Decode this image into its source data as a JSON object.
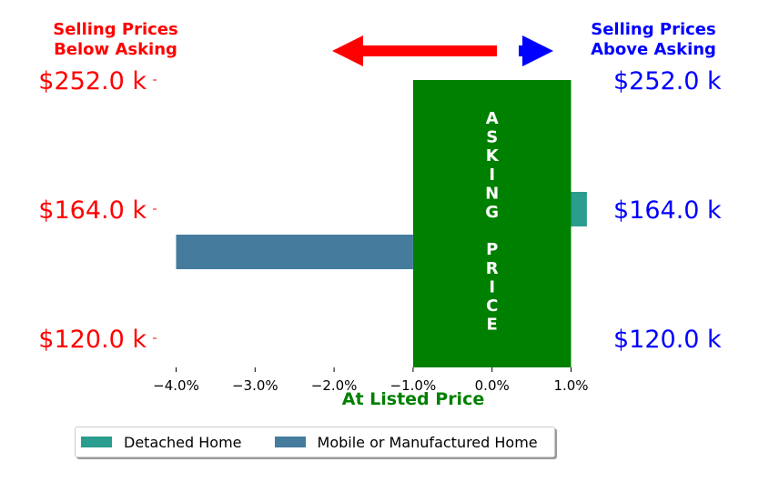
{
  "chart_data": {
    "type": "bar",
    "orientation": "horizontal",
    "categories": [
      "$120.0 k",
      "$164.0 k",
      "$252.0 k"
    ],
    "series": [
      {
        "name": "Detached Home",
        "color": "#2a9d8f",
        "points": [
          {
            "category": "$164.0 k",
            "value": 1.2
          }
        ]
      },
      {
        "name": "Mobile or Manufactured Home",
        "color": "#457b9d",
        "points": [
          {
            "category": "$164.0 k",
            "value": -4.0
          }
        ]
      }
    ],
    "xticks": [
      -4.0,
      -3.0,
      -2.0,
      -1.0,
      0.0,
      1.0
    ],
    "xtick_labels": [
      "−4.0%",
      "−3.0%",
      "−2.0%",
      "−1.0%",
      "0.0%",
      "1.0%"
    ],
    "xlim": [
      -4.7,
      1.1
    ],
    "asking_band": {
      "from": -1.0,
      "to": 1.0,
      "color": "#008000",
      "text": "ASKING PRICE"
    },
    "xlabel": "At Listed Price",
    "xlabel_color": "#008000",
    "left_header": "Selling Prices Below Asking",
    "right_header": "Selling Prices Above Asking",
    "left_color": "#ff0000",
    "right_color": "#0000ff",
    "legend_placement": "bottom",
    "grid": false
  },
  "text": {
    "left_header_line1": "Selling Prices",
    "left_header_line2": "Below Asking",
    "right_header_line1": "Selling Prices",
    "right_header_line2": "Above Asking",
    "asking_letters_1": [
      "A",
      "S",
      "K",
      "I",
      "N",
      "G"
    ],
    "asking_letters_2": [
      "P",
      "R",
      "I",
      "C",
      "E"
    ],
    "xlabel": "At Listed Price",
    "legend": [
      "Detached Home",
      "Mobile or Manufactured Home"
    ]
  }
}
